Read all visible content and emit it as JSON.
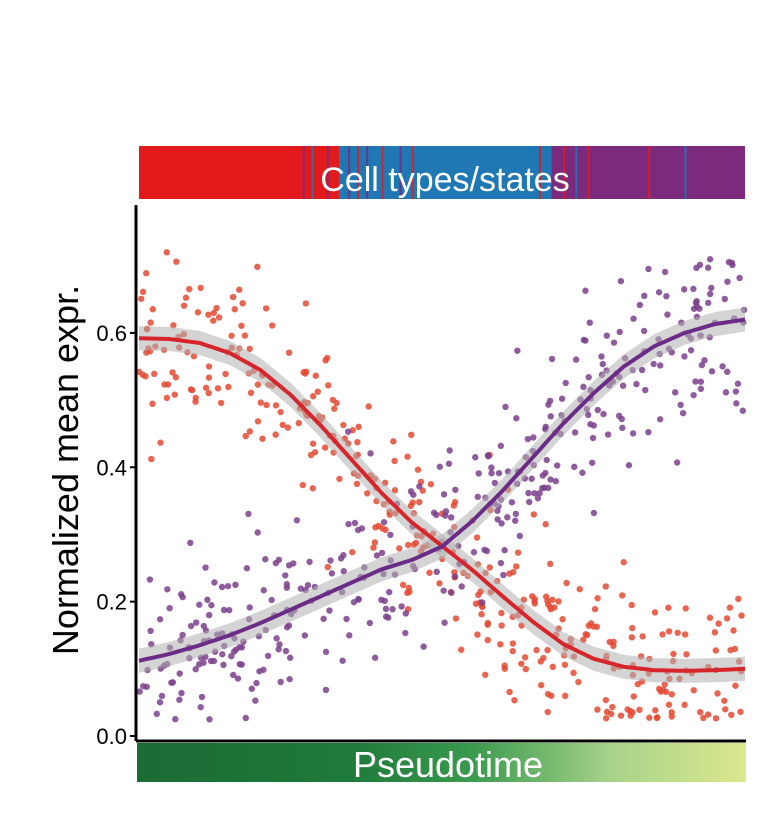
{
  "chart_data": {
    "type": "scatter",
    "title": "",
    "xlabel": "",
    "ylabel": "Normalized mean expr.",
    "xlim": [
      0,
      1
    ],
    "ylim": [
      0.0,
      0.78
    ],
    "y_ticks": [
      "0.0",
      "0.2",
      "0.4",
      "0.6"
    ],
    "y_tick_values": [
      0.0,
      0.2,
      0.4,
      0.6
    ],
    "grid": false,
    "legend": "none",
    "top_bar": {
      "label": "Cell types/states",
      "colors": {
        "red": "#e31a1c",
        "blue": "#1f78b4",
        "purple": "#7b2a7d"
      },
      "segments": [
        {
          "start": 0.0,
          "end": 0.33,
          "color": "red"
        },
        {
          "start": 0.33,
          "end": 0.68,
          "color": "blue"
        },
        {
          "start": 0.68,
          "end": 1.0,
          "color": "purple"
        }
      ],
      "stripes": [
        {
          "x": 0.27,
          "color": "purple"
        },
        {
          "x": 0.285,
          "color": "blue"
        },
        {
          "x": 0.31,
          "color": "purple"
        },
        {
          "x": 0.325,
          "color": "red"
        },
        {
          "x": 0.345,
          "color": "purple"
        },
        {
          "x": 0.36,
          "color": "red"
        },
        {
          "x": 0.375,
          "color": "purple"
        },
        {
          "x": 0.4,
          "color": "red"
        },
        {
          "x": 0.43,
          "color": "purple"
        },
        {
          "x": 0.45,
          "color": "red"
        },
        {
          "x": 0.66,
          "color": "red"
        },
        {
          "x": 0.7,
          "color": "red"
        },
        {
          "x": 0.72,
          "color": "blue"
        },
        {
          "x": 0.74,
          "color": "red"
        },
        {
          "x": 0.84,
          "color": "red"
        },
        {
          "x": 0.9,
          "color": "blue"
        }
      ]
    },
    "bottom_bar": {
      "label": "Pseudotime",
      "gradient": [
        "#1b6b35",
        "#1e7a3a",
        "#3a9a4e",
        "#a8d38a",
        "#dbe88e"
      ]
    },
    "series": [
      {
        "color": "#e34a33",
        "trend_color": "#d7262b",
        "trend": {
          "x": [
            0.0,
            0.05,
            0.1,
            0.15,
            0.2,
            0.25,
            0.3,
            0.35,
            0.4,
            0.45,
            0.5,
            0.55,
            0.6,
            0.65,
            0.7,
            0.75,
            0.8,
            0.85,
            0.9,
            0.95,
            1.0
          ],
          "y": [
            0.592,
            0.591,
            0.585,
            0.57,
            0.545,
            0.508,
            0.462,
            0.412,
            0.362,
            0.318,
            0.283,
            0.247,
            0.208,
            0.17,
            0.137,
            0.115,
            0.103,
            0.098,
            0.097,
            0.098,
            0.1
          ]
        }
      },
      {
        "color": "#7b3f8c",
        "trend_color": "#6a2c86",
        "trend": {
          "x": [
            0.0,
            0.05,
            0.1,
            0.15,
            0.2,
            0.25,
            0.3,
            0.35,
            0.4,
            0.45,
            0.5,
            0.55,
            0.6,
            0.65,
            0.7,
            0.75,
            0.8,
            0.85,
            0.9,
            0.95,
            1.0
          ],
          "y": [
            0.112,
            0.122,
            0.135,
            0.15,
            0.168,
            0.188,
            0.208,
            0.228,
            0.248,
            0.262,
            0.282,
            0.32,
            0.365,
            0.415,
            0.465,
            0.51,
            0.55,
            0.58,
            0.6,
            0.613,
            0.62
          ]
        }
      }
    ]
  }
}
